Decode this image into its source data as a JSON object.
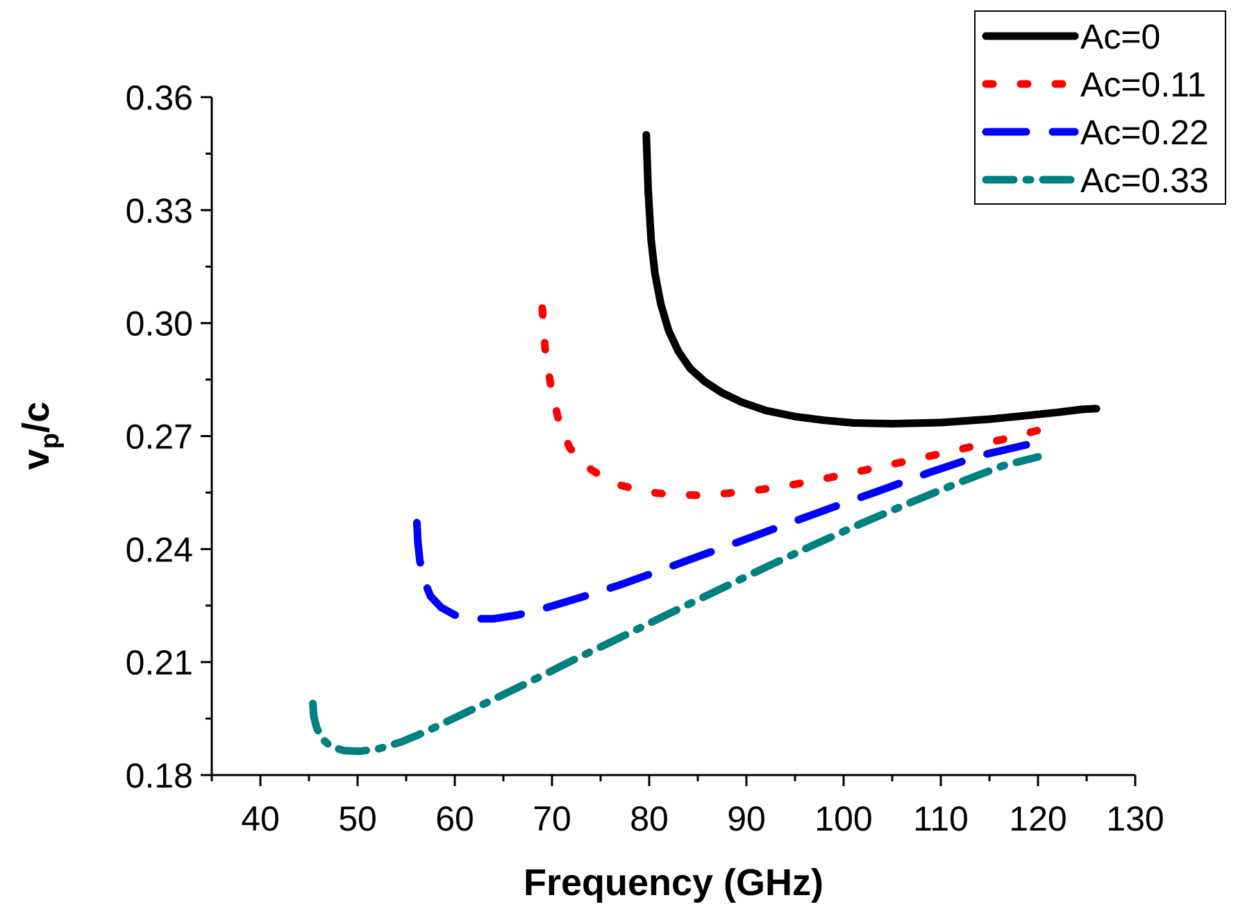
{
  "chart_data": {
    "type": "line",
    "title": "",
    "xlabel": "Frequency (GHz)",
    "ylabel": {
      "v": "v",
      "sub": "p",
      "rest": "/c"
    },
    "xlim": [
      35,
      130
    ],
    "ylim": [
      0.18,
      0.36
    ],
    "xticks": [
      40,
      50,
      60,
      70,
      80,
      90,
      100,
      110,
      120,
      130
    ],
    "yticks": [
      0.18,
      0.21,
      0.24,
      0.27,
      0.3,
      0.33,
      0.36
    ],
    "xtick_labels": [
      "40",
      "50",
      "60",
      "70",
      "80",
      "90",
      "100",
      "110",
      "120",
      "130"
    ],
    "ytick_labels": [
      "0.18",
      "0.21",
      "0.24",
      "0.27",
      "0.30",
      "0.33",
      "0.36"
    ],
    "grid": false,
    "legend_position": "top-right",
    "series": [
      {
        "name": "Ac=0",
        "color": "#000000",
        "style": "solid",
        "x": [
          79.7,
          79.9,
          80.2,
          80.6,
          81.2,
          82.0,
          83.0,
          84.2,
          85.7,
          87.5,
          89.5,
          92.0,
          95.0,
          98.0,
          101.0,
          105.0,
          110.0,
          115.0,
          119.0,
          122.0,
          124.5,
          126.0
        ],
        "y": [
          0.35,
          0.335,
          0.322,
          0.313,
          0.305,
          0.298,
          0.2925,
          0.288,
          0.2845,
          0.2815,
          0.279,
          0.2768,
          0.2752,
          0.2742,
          0.2735,
          0.2733,
          0.2736,
          0.2745,
          0.2755,
          0.2763,
          0.2771,
          0.2773
        ]
      },
      {
        "name": "Ac=0.11",
        "color": "#ff0000",
        "style": "dotted",
        "x": [
          69.0,
          69.3,
          69.9,
          70.7,
          71.8,
          73.2,
          75.0,
          77.0,
          79.5,
          82.0,
          85.0,
          88.0,
          91.5,
          95.0,
          99.0,
          103.5,
          108.0,
          112.5,
          117.0,
          121.0
        ],
        "y": [
          0.304,
          0.293,
          0.283,
          0.274,
          0.267,
          0.2625,
          0.2595,
          0.257,
          0.2553,
          0.2545,
          0.2543,
          0.2548,
          0.2558,
          0.2572,
          0.2592,
          0.2617,
          0.2642,
          0.2668,
          0.2695,
          0.2722
        ]
      },
      {
        "name": "Ac=0.22",
        "color": "#0000ff",
        "style": "dashed",
        "x": [
          56.1,
          56.2,
          56.4,
          56.8,
          57.5,
          58.6,
          60.0,
          61.8,
          64.0,
          66.5,
          69.5,
          73.0,
          77.0,
          81.0,
          85.0,
          89.5,
          94.0,
          99.0,
          104.0,
          109.0,
          114.0,
          119.0
        ],
        "y": [
          0.247,
          0.242,
          0.237,
          0.232,
          0.2275,
          0.2245,
          0.2225,
          0.2215,
          0.2215,
          0.2225,
          0.2245,
          0.2272,
          0.2305,
          0.2342,
          0.238,
          0.2422,
          0.2465,
          0.2512,
          0.2558,
          0.2605,
          0.2648,
          0.2678
        ]
      },
      {
        "name": "Ac=0.33",
        "color": "#008080",
        "style": "dashdot",
        "x": [
          45.4,
          45.5,
          45.8,
          46.4,
          47.3,
          48.6,
          50.2,
          52.2,
          54.5,
          57.0,
          60.0,
          63.5,
          67.5,
          72.0,
          77.0,
          82.0,
          87.0,
          92.0,
          97.0,
          102.0,
          107.0,
          112.0,
          116.5,
          120.0
        ],
        "y": [
          0.199,
          0.1955,
          0.1925,
          0.1895,
          0.1875,
          0.1865,
          0.1863,
          0.187,
          0.1888,
          0.1915,
          0.1952,
          0.1995,
          0.2045,
          0.2103,
          0.2165,
          0.2228,
          0.229,
          0.2352,
          0.2412,
          0.247,
          0.2525,
          0.2578,
          0.2622,
          0.2645
        ]
      }
    ]
  }
}
